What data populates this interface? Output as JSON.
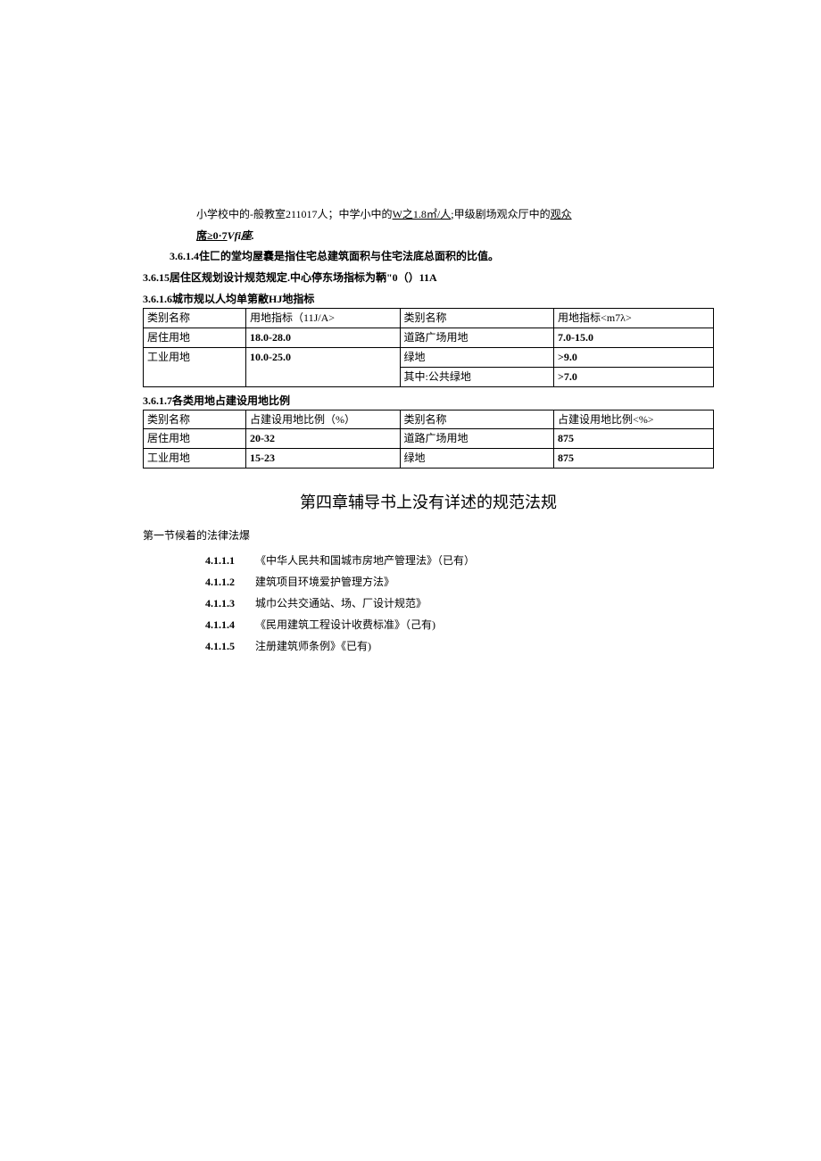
{
  "intro": {
    "line1_a": "小学校中的-般教室211017人；中学小中的",
    "line1_b": "W之1.8㎡/人",
    "line1_c": ";甲级剧场观众厅中的",
    "line1_d": "观众",
    "line2_a": "席≥0·7",
    "line2_b": "Vfi座.",
    "p314": "3.6.1.4住匚的堂均屋嚢是指住宅总建筑面积与住宅法底总面积的比值。",
    "p3615": "3.6.15居住区规划设计规范规定.中心停东场指标为鞆\"0（）11A",
    "caption1": "3.6.1.6城市规以人均单第敝HJ地指标",
    "caption2": "3.6.1.7各类用地占建设用地比例"
  },
  "table1": {
    "headers": [
      "类别名称",
      "用地指标（11J/A>",
      "类别名称",
      "用地指标<m7λ>"
    ],
    "rows": [
      [
        "居住用地",
        "18.0-28.0",
        "道路广场用地",
        "7.0-15.0"
      ],
      [
        "工业用地",
        "10.0-25.0",
        "绿地",
        ">9.0"
      ],
      [
        "",
        "",
        "其中:公共绿地",
        ">7.0"
      ]
    ],
    "header_bold_cols": [
      false,
      true,
      false,
      true
    ],
    "row_bold_cols": [
      [
        false,
        true,
        false,
        true
      ],
      [
        false,
        true,
        false,
        true
      ],
      [
        false,
        false,
        false,
        true
      ]
    ]
  },
  "table2": {
    "headers": [
      "类别名称",
      "占建设用地比例（%）",
      "类别名称",
      "占建设用地比例<%>"
    ],
    "rows": [
      [
        "居住用地",
        "20-32",
        "道路广场用地",
        "875"
      ],
      [
        "工业用地",
        "15-23",
        "绿地",
        "875"
      ]
    ],
    "row_bold_cols": [
      [
        false,
        true,
        false,
        true
      ],
      [
        false,
        true,
        false,
        true
      ]
    ]
  },
  "chapter": {
    "title": "第四章辅导书上没有详述的规范法规",
    "section": "第一节候着的法律法爆",
    "items": [
      {
        "num": "4.1.1.1",
        "text": "《中华人民共和国城市房地产管理法》（已有）"
      },
      {
        "num": "4.1.1.2",
        "text": "建筑项目环境爱护管理方法》"
      },
      {
        "num": "4.1.1.3",
        "text": "城巾公共交通站、场、厂设计规范》"
      },
      {
        "num": "4.1.1.4",
        "text": "《民用建筑工程设计收费标准》（己有)"
      },
      {
        "num": "4.1.1.5",
        "text": "注册建筑师条例》《已有)"
      }
    ]
  },
  "colors": {
    "text": "#000000",
    "background": "#ffffff",
    "border": "#000000"
  },
  "fonts": {
    "body_size": 12,
    "title_size": 18
  }
}
